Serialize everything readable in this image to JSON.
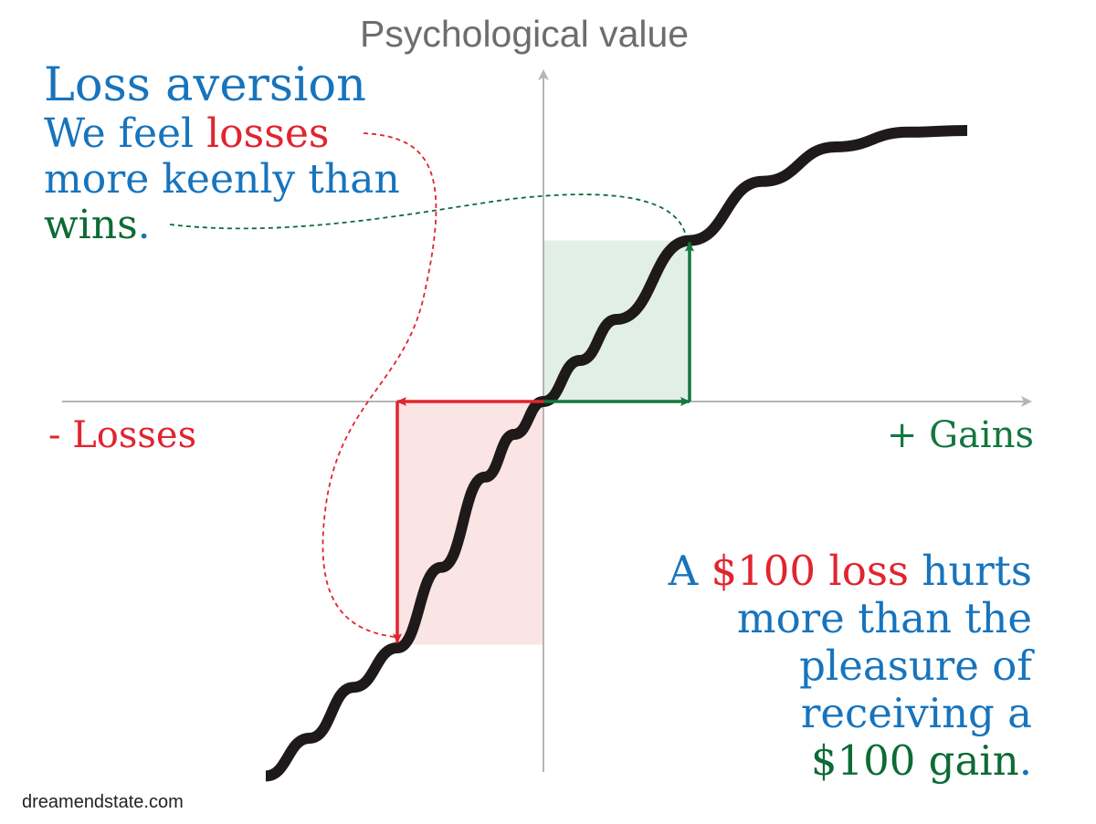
{
  "colors": {
    "blue": "#1774bd",
    "red": "#e1242f",
    "green": "#13773f",
    "dark_green": "#0d6b35",
    "axis": "#b5b5b5",
    "curve": "#1e1a1a",
    "axis_text": "#6d6d6d",
    "gain_fill": "#e2efe8",
    "loss_fill": "#fbe4e4"
  },
  "axes": {
    "y_label": "Psychological value",
    "x_negative_label": "- Losses",
    "x_positive_label": "+ Gains"
  },
  "headline": {
    "title": "Loss aversion",
    "line1_a": "We feel ",
    "line1_b": "losses",
    "line2": "more keenly than",
    "line3_a": "wins",
    "line3_b": "."
  },
  "note": {
    "l1_a": "A ",
    "l1_b": "$100 loss",
    "l1_c": " hurts",
    "l2": "more than the",
    "l3": "pleasure of",
    "l4": "receiving a",
    "l5_a": "$100 gain",
    "l5_b": "."
  },
  "source": "dreamendstate.com",
  "chart_data": {
    "type": "line",
    "title": "",
    "xlabel": "",
    "ylabel": "Psychological value",
    "x_range": [
      -3.3,
      3.3
    ],
    "y_range": [
      -2.6,
      2.2
    ],
    "grid": false,
    "series": [
      {
        "x": [
          -1.9,
          -1.6,
          -1.3,
          -1.0,
          -0.7,
          -0.4,
          -0.2,
          0,
          0.25,
          0.5,
          1.0,
          1.5,
          2.0,
          2.5,
          2.9
        ],
        "y": [
          -2.28,
          -2.05,
          -1.74,
          -1.5,
          -1.01,
          -0.46,
          -0.2,
          0,
          0.25,
          0.5,
          0.98,
          1.34,
          1.55,
          1.64,
          1.65
        ]
      }
    ],
    "markers": {
      "gain_amount": 1.0,
      "loss_amount": 1.0
    }
  }
}
